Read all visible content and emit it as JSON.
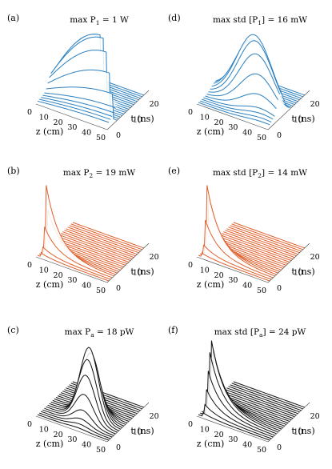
{
  "chart_data": [
    {
      "type": "waterfall",
      "panel_label": "(a)",
      "title_main": "max P",
      "title_sub": "1",
      "title_tail": " = 1 W",
      "color": "#2a7fc0",
      "xlabel": "z (cm)",
      "ylabel": "t (ns)",
      "x_ticks": [
        "0",
        "10",
        "20",
        "30",
        "40",
        "50"
      ],
      "t_ticks": [
        "0",
        "10",
        "20"
      ],
      "xlim": [
        0,
        50
      ],
      "tlim": [
        0,
        25
      ],
      "shape": "square",
      "t_centers": [
        1,
        2,
        3,
        4,
        5,
        6,
        7,
        8,
        9,
        10,
        11,
        12,
        13,
        14,
        15,
        16,
        17,
        18,
        19,
        20,
        21,
        22
      ],
      "peak_z": [
        50,
        50,
        50,
        50,
        50,
        47,
        44,
        40,
        37,
        34,
        31,
        28,
        26,
        24,
        22,
        20,
        18,
        16,
        14,
        12,
        10,
        8
      ],
      "amplitudes": [
        0.08,
        0.1,
        0.12,
        0.15,
        0.2,
        0.35,
        0.6,
        0.85,
        1.0,
        1.0,
        0.95,
        0.85,
        0.7,
        0.5,
        0.3,
        0.15,
        0.08,
        0.04,
        0.02,
        0.01,
        0.0,
        0.0
      ]
    },
    {
      "type": "waterfall",
      "panel_label": "(d)",
      "title_main": "max std [P",
      "title_sub": "1",
      "title_tail": "] = 16 mW",
      "color": "#2a7fc0",
      "xlabel": "z (cm)",
      "ylabel": "t (ns)",
      "x_ticks": [
        "0",
        "10",
        "20",
        "30",
        "40",
        "50"
      ],
      "t_ticks": [
        "0",
        "10",
        "20"
      ],
      "xlim": [
        0,
        50
      ],
      "tlim": [
        0,
        25
      ],
      "shape": "arch",
      "t_centers": [
        1,
        2,
        3,
        4,
        5,
        6,
        7,
        8,
        9,
        10,
        11,
        12,
        13,
        14,
        15,
        16,
        17,
        18,
        19,
        20,
        21,
        22
      ],
      "peak_z": [
        46,
        44,
        42,
        40,
        38,
        36,
        34,
        32,
        30,
        28,
        26,
        24,
        22,
        20,
        18,
        16,
        14,
        12,
        10,
        8,
        6,
        4
      ],
      "amplitudes": [
        0.05,
        0.07,
        0.1,
        0.14,
        0.3,
        0.55,
        0.8,
        0.95,
        1.0,
        0.9,
        0.7,
        0.45,
        0.25,
        0.12,
        0.06,
        0.03,
        0.02,
        0.01,
        0.0,
        0.0,
        0.0,
        0.0
      ]
    },
    {
      "type": "waterfall",
      "panel_label": "(b)",
      "title_main": "max P",
      "title_sub": "2",
      "title_tail": " = 19 mW",
      "color": "#e0602c",
      "xlabel": "z (cm)",
      "ylabel": "t (ns)",
      "x_ticks": [
        "0",
        "10",
        "20",
        "30",
        "40",
        "50"
      ],
      "t_ticks": [
        "0",
        "10",
        "20"
      ],
      "xlim": [
        0,
        50
      ],
      "tlim": [
        0,
        25
      ],
      "shape": "decay",
      "t_centers": [
        1,
        2,
        3,
        4,
        5,
        6,
        7,
        8,
        9,
        10,
        11,
        12,
        13,
        14,
        15,
        16,
        17,
        18,
        19,
        20,
        21,
        22
      ],
      "peak_z": [
        3,
        3,
        3,
        3,
        3,
        3,
        3,
        3,
        3,
        3,
        3,
        3,
        3,
        3,
        3,
        3,
        3,
        3,
        3,
        3,
        3,
        3
      ],
      "amplitudes": [
        0.05,
        0.12,
        0.4,
        1.0,
        0.6,
        0.3,
        0.12,
        0.05,
        0.02,
        0.01,
        0.0,
        0.0,
        0.0,
        0.0,
        0.0,
        0.0,
        0.0,
        0.0,
        0.0,
        0.0,
        0.0,
        0.0
      ]
    },
    {
      "type": "waterfall",
      "panel_label": "(e)",
      "title_main": "max std [P",
      "title_sub": "2",
      "title_tail": "] = 14 mW",
      "color": "#e0602c",
      "xlabel": "z (cm)",
      "ylabel": "t (ns)",
      "x_ticks": [
        "0",
        "10",
        "20",
        "30",
        "40",
        "50"
      ],
      "t_ticks": [
        "0",
        "10",
        "20"
      ],
      "xlim": [
        0,
        50
      ],
      "tlim": [
        0,
        25
      ],
      "shape": "decay",
      "t_centers": [
        1,
        2,
        3,
        4,
        5,
        6,
        7,
        8,
        9,
        10,
        11,
        12,
        13,
        14,
        15,
        16,
        17,
        18,
        19,
        20,
        21,
        22
      ],
      "peak_z": [
        3,
        3,
        3,
        3,
        3,
        3,
        3,
        3,
        3,
        3,
        3,
        3,
        3,
        3,
        3,
        3,
        3,
        3,
        3,
        3,
        3,
        3
      ],
      "amplitudes": [
        0.05,
        0.15,
        0.5,
        1.0,
        0.8,
        0.5,
        0.25,
        0.1,
        0.04,
        0.02,
        0.01,
        0.0,
        0.0,
        0.0,
        0.0,
        0.0,
        0.0,
        0.0,
        0.0,
        0.0,
        0.0,
        0.0
      ]
    },
    {
      "type": "waterfall",
      "panel_label": "(c)",
      "title_main": "max P",
      "title_sub": "a",
      "title_tail": " = 18 pW",
      "color": "#111111",
      "xlabel": "z (cm)",
      "ylabel": "t (ns)",
      "x_ticks": [
        "0",
        "10",
        "20",
        "30",
        "40",
        "50"
      ],
      "t_ticks": [
        "0",
        "10",
        "20"
      ],
      "xlim": [
        0,
        50
      ],
      "tlim": [
        0,
        25
      ],
      "shape": "hump",
      "t_centers": [
        1,
        2,
        3,
        4,
        5,
        6,
        7,
        8,
        9,
        10,
        11,
        12,
        13,
        14,
        15,
        16,
        17,
        18,
        19,
        20,
        21,
        22
      ],
      "peak_z": [
        28,
        28,
        28,
        28,
        28,
        28,
        28,
        28,
        28,
        28,
        28,
        28,
        28,
        28,
        28,
        28,
        28,
        28,
        28,
        28,
        28,
        28
      ],
      "amplitudes": [
        0.02,
        0.05,
        0.1,
        0.2,
        0.4,
        0.65,
        0.85,
        1.0,
        0.9,
        0.7,
        0.5,
        0.3,
        0.15,
        0.07,
        0.03,
        0.01,
        0.0,
        0.0,
        0.0,
        0.0,
        0.0,
        0.0
      ]
    },
    {
      "type": "waterfall",
      "panel_label": "(f)",
      "title_main": "max std [P",
      "title_sub": "a",
      "title_tail": "] = 24 pW",
      "color": "#111111",
      "xlabel": "z (cm)",
      "ylabel": "t (ns)",
      "x_ticks": [
        "0",
        "10",
        "20",
        "30",
        "40",
        "50"
      ],
      "t_ticks": [
        "0",
        "10",
        "20"
      ],
      "xlim": [
        0,
        50
      ],
      "tlim": [
        0,
        25
      ],
      "shape": "decay",
      "t_centers": [
        1,
        2,
        3,
        4,
        5,
        6,
        7,
        8,
        9,
        10,
        11,
        12,
        13,
        14,
        15,
        16,
        17,
        18,
        19,
        20,
        21,
        22
      ],
      "peak_z": [
        4,
        4,
        4,
        4,
        4,
        4,
        4,
        4,
        4,
        4,
        4,
        4,
        4,
        4,
        4,
        4,
        4,
        4,
        4,
        4,
        4,
        4
      ],
      "amplitudes": [
        0.05,
        0.15,
        0.35,
        0.6,
        0.85,
        1.0,
        0.85,
        0.6,
        0.4,
        0.2,
        0.1,
        0.05,
        0.02,
        0.0,
        0.0,
        0.0,
        0.0,
        0.0,
        0.0,
        0.0,
        0.0,
        0.0
      ]
    }
  ]
}
